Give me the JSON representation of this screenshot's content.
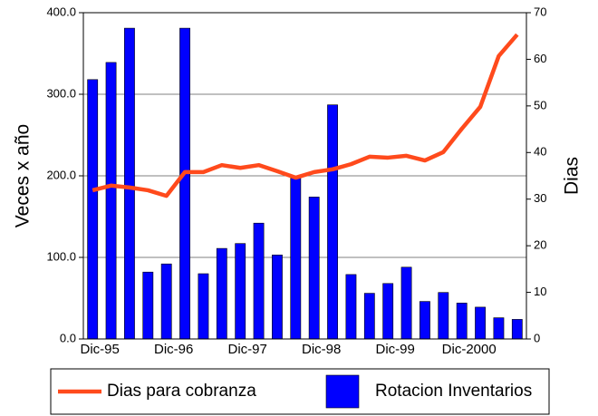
{
  "chart_data": {
    "type": "bar_line",
    "categories": [
      "Dic-95",
      null,
      null,
      null,
      "Dic-96",
      null,
      null,
      null,
      "Dic-97",
      null,
      null,
      null,
      "Dic-98",
      null,
      null,
      null,
      "Dic-99",
      null,
      null,
      null,
      "Dic-2000",
      null,
      null,
      null
    ],
    "series": [
      {
        "name": "Rotacion Inventarios",
        "color": "#0000ff",
        "type": "bar",
        "values": [
          318,
          339,
          381,
          82,
          92,
          381,
          80,
          111,
          117,
          142,
          103,
          197,
          174,
          287,
          79,
          56,
          68,
          88,
          46,
          57,
          44,
          39,
          26,
          24
        ]
      },
      {
        "name": "Dias para cobranza",
        "color": "#ff4a1c",
        "type": "line",
        "axis": "y2",
        "values": [
          31.9,
          32.9,
          32.5,
          31.9,
          30.7,
          35.8,
          35.8,
          37.3,
          36.7,
          37.3,
          36.0,
          34.6,
          35.8,
          36.4,
          37.5,
          39.1,
          38.9,
          39.3,
          38.3,
          40.1,
          45.1,
          49.8,
          60.7,
          65.3
        ]
      }
    ],
    "ylabel": "Veces x año",
    "y2label": "Dias",
    "ylim": [
      0,
      400
    ],
    "yticks": [
      {
        "value": 0,
        "label": "0.0"
      },
      {
        "value": 100,
        "label": "100.0"
      },
      {
        "value": 200,
        "label": "200.0"
      },
      {
        "value": 300,
        "label": "300.0"
      },
      {
        "value": 400,
        "label": "400.0"
      }
    ],
    "y2lim": [
      0,
      70
    ],
    "y2ticks": [
      0,
      10,
      20,
      30,
      40,
      50,
      60,
      70
    ],
    "grid": true,
    "legend": "bottom"
  }
}
